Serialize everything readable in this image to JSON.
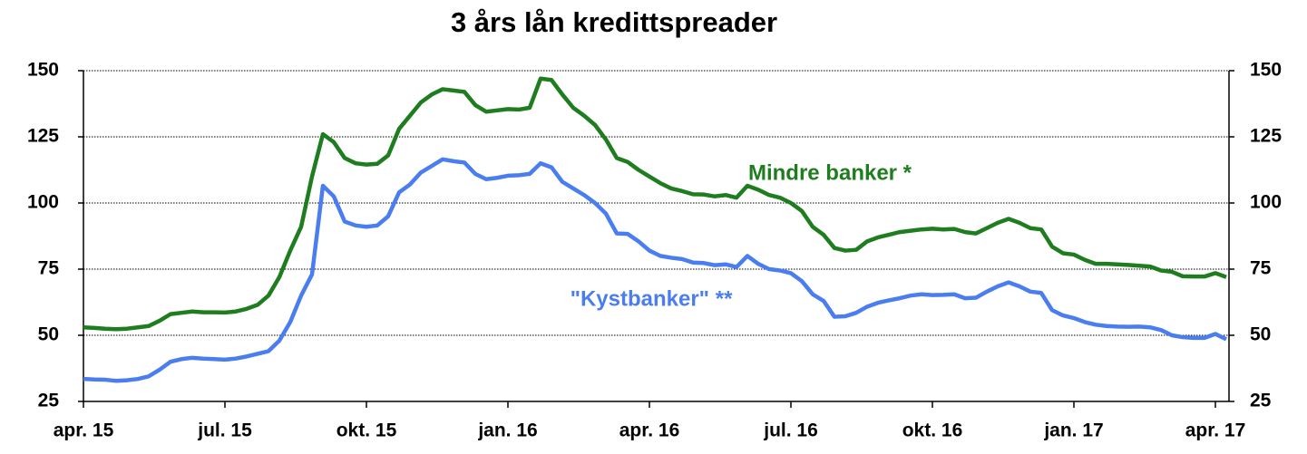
{
  "chart_data": {
    "type": "line",
    "title": "3 års lån kredittspreader",
    "categories": [
      "apr. 15",
      null,
      null,
      null,
      null,
      null,
      null,
      null,
      null,
      null,
      null,
      null,
      null,
      "jul. 15",
      null,
      null,
      null,
      null,
      null,
      null,
      null,
      null,
      null,
      null,
      null,
      null,
      "okt. 15",
      null,
      null,
      null,
      null,
      null,
      null,
      null,
      null,
      null,
      null,
      null,
      null,
      "jan. 16",
      null,
      null,
      null,
      null,
      null,
      null,
      null,
      null,
      null,
      null,
      null,
      null,
      "apr. 16",
      null,
      null,
      null,
      null,
      null,
      null,
      null,
      null,
      null,
      null,
      null,
      null,
      "jul. 16",
      null,
      null,
      null,
      null,
      null,
      null,
      null,
      null,
      null,
      null,
      null,
      null,
      "okt. 16",
      null,
      null,
      null,
      null,
      null,
      null,
      null,
      null,
      null,
      null,
      null,
      null,
      "jan. 17",
      null,
      null,
      null,
      null,
      null,
      null,
      null,
      null,
      null,
      null,
      null,
      null,
      "apr. 17",
      null
    ],
    "series": [
      {
        "name": "Mindre banker *",
        "color": "#1e7d1e",
        "values": [
          53,
          52.8,
          52.5,
          52.3,
          52.5,
          53,
          53.5,
          55.5,
          58,
          58.5,
          59,
          58.7,
          58.7,
          58.6,
          59,
          60,
          61.5,
          65,
          72,
          82,
          91,
          110,
          126,
          123,
          117,
          115,
          114.5,
          114.8,
          118,
          128,
          133,
          138,
          141,
          143,
          142.5,
          142,
          137,
          134.5,
          135,
          135.5,
          135.3,
          136,
          147,
          146.5,
          141,
          136,
          133,
          129.5,
          124,
          117,
          115.5,
          112.5,
          110,
          107.5,
          105.5,
          104.5,
          103.3,
          103.2,
          102.5,
          103,
          102,
          106.5,
          105,
          103,
          102,
          100,
          97,
          91,
          88,
          83,
          82,
          82.3,
          85.5,
          87,
          88,
          89,
          89.5,
          90,
          90.3,
          90,
          90.2,
          89,
          88.5,
          90.5,
          92.5,
          94,
          92.5,
          90.5,
          90,
          83.5,
          81,
          80.5,
          78.5,
          77,
          77,
          76.8,
          76.6,
          76.3,
          76,
          74.5,
          74,
          72.3,
          72.2,
          72.2,
          73.5,
          72
        ]
      },
      {
        "name": "\"Kystbanker\" **",
        "color": "#4a7ef0",
        "values": [
          33.5,
          33.3,
          33.2,
          32.8,
          33,
          33.5,
          34.5,
          37,
          40,
          41,
          41.5,
          41.2,
          41,
          40.8,
          41.2,
          42,
          43,
          44,
          48,
          55,
          65,
          73,
          106.5,
          102.5,
          93,
          91.5,
          91,
          91.5,
          95,
          104,
          107,
          111.5,
          114,
          116.5,
          115.8,
          115.3,
          111,
          109,
          109.5,
          110.3,
          110.5,
          111,
          115,
          113.5,
          108,
          105.5,
          103,
          100,
          96,
          88.5,
          88.3,
          85.5,
          82,
          80,
          79.3,
          78.8,
          77.5,
          77.3,
          76.5,
          76.8,
          75.8,
          80,
          77,
          75,
          74.5,
          73.5,
          70.5,
          65.5,
          63,
          57,
          57.2,
          58.5,
          60.8,
          62.3,
          63.2,
          64,
          65,
          65.5,
          65.2,
          65.3,
          65.5,
          64,
          64.2,
          66.5,
          68.5,
          70,
          68.5,
          66.5,
          66,
          59.5,
          57.5,
          56.5,
          55,
          54,
          53.5,
          53.3,
          53.2,
          53.3,
          53,
          52,
          50,
          49.3,
          49,
          49,
          50.5,
          48.5
        ]
      }
    ],
    "ylim": [
      25,
      150
    ],
    "yticks": [
      25,
      50,
      75,
      100,
      125,
      150
    ],
    "y2lim": [
      25,
      150
    ],
    "y2ticks": [
      25,
      50,
      75,
      100,
      125,
      150
    ],
    "grid": true
  }
}
